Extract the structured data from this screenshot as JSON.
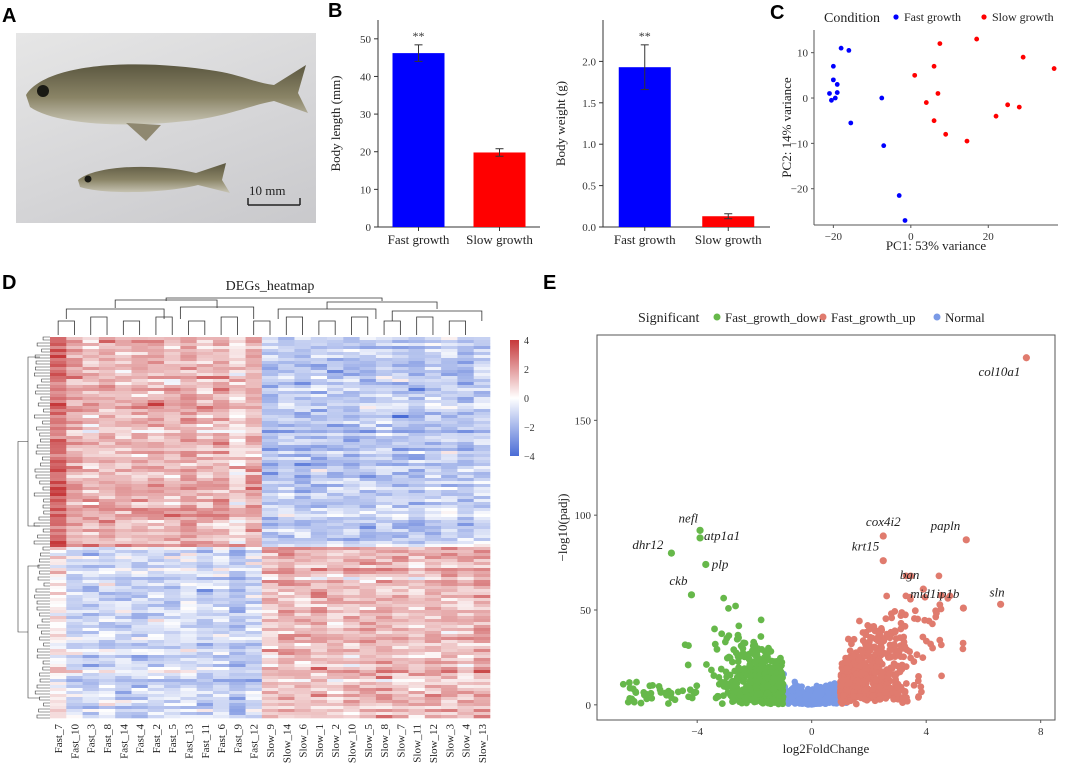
{
  "panels": {
    "a": "A",
    "b": "B",
    "c": "C",
    "d": "D",
    "e": "E"
  },
  "photo": {
    "scale_label": "10 mm"
  },
  "colors": {
    "blue": "#0000ff",
    "red": "#ff0000",
    "heat_high": "#c6393b",
    "heat_low": "#4a6cd6",
    "fast_down": "#66b84a",
    "fast_up": "#e07b6e",
    "normal": "#7a9ae6"
  },
  "chart_data": [
    {
      "type": "bar",
      "categories": [
        "Fast growth",
        "Slow growth"
      ],
      "values": [
        46.2,
        19.8
      ],
      "errors": [
        2.2,
        1.0
      ],
      "annotations": [
        "**",
        ""
      ],
      "ylabel": "Body length (mm)",
      "ylim": [
        0,
        55
      ],
      "yticks": [
        0,
        10,
        20,
        30,
        40,
        50
      ]
    },
    {
      "type": "bar",
      "categories": [
        "Fast growth",
        "Slow growth"
      ],
      "values": [
        1.93,
        0.13
      ],
      "errors": [
        0.27,
        0.03
      ],
      "annotations": [
        "**",
        ""
      ],
      "ylabel": "Body weight (g)",
      "ylim": [
        0,
        2.5
      ],
      "yticks": [
        "0.0",
        "0.5",
        "1.0",
        "1.5",
        "2.0"
      ]
    },
    {
      "type": "scatter",
      "legend_title": "Condition",
      "xlabel": "PC1: 53% variance",
      "ylabel": "PC2: 14% variance",
      "xlim": [
        -25,
        38
      ],
      "ylim": [
        -28,
        15
      ],
      "xticks": [
        -20,
        0,
        20
      ],
      "yticks": [
        -20,
        -10,
        0,
        10
      ],
      "series": [
        {
          "name": "Fast growth",
          "color": "#0000ff",
          "points": [
            [
              -20,
              7
            ],
            [
              -18,
              11
            ],
            [
              -16,
              10.5
            ],
            [
              -20,
              4
            ],
            [
              -19,
              3
            ],
            [
              -21,
              1
            ],
            [
              -19.5,
              0
            ],
            [
              -19,
              1.2
            ],
            [
              -20.5,
              -0.5
            ],
            [
              -15.5,
              -5.5
            ],
            [
              -7.5,
              0
            ],
            [
              -7,
              -10.5
            ],
            [
              -3,
              -21.5
            ],
            [
              -1.5,
              -27
            ]
          ]
        },
        {
          "name": "Slow growth",
          "color": "#ff0000",
          "points": [
            [
              1,
              5
            ],
            [
              6,
              7
            ],
            [
              7.5,
              12
            ],
            [
              4,
              -1
            ],
            [
              7,
              1
            ],
            [
              6,
              -5
            ],
            [
              9,
              -8
            ],
            [
              17,
              13
            ],
            [
              14.5,
              -9.5
            ],
            [
              22,
              -4
            ],
            [
              25,
              -1.5
            ],
            [
              28,
              -2
            ],
            [
              29,
              9
            ],
            [
              37,
              6.5
            ]
          ]
        }
      ]
    },
    {
      "type": "heatmap",
      "title": "DEGs_heatmap",
      "colorbar_ticks": [
        "4",
        "2",
        "0",
        "−2",
        "−4"
      ],
      "columns": [
        "Fast_7",
        "Fast_10",
        "Fast_3",
        "Fast_8",
        "Fast_14",
        "Fast_4",
        "Fast_2",
        "Fast_5",
        "Fast_13",
        "Fast_11",
        "Fast_6",
        "Fast_9",
        "Fast_12",
        "Slow_9",
        "Slow_14",
        "Slow_6",
        "Slow_1",
        "Slow_2",
        "Slow_10",
        "Slow_5",
        "Slow_8",
        "Slow_7",
        "Slow_11",
        "Slow_12",
        "Slow_3",
        "Slow_4",
        "Slow_13"
      ],
      "blocks": [
        {
          "rows": "upper",
          "fast": 1.6,
          "slow": -1.3
        },
        {
          "rows": "lower",
          "fast": -0.9,
          "slow": 1.4
        }
      ]
    },
    {
      "type": "scatter",
      "legend_title": "Significant",
      "legend": [
        "Fast_growth_down",
        "Fast_growth_up",
        "Normal"
      ],
      "xlabel": "log2FoldChange",
      "ylabel": "−log10(padj)",
      "xlim": [
        -7.5,
        8.5
      ],
      "ylim": [
        -8,
        195
      ],
      "xticks": [
        -4,
        0,
        4,
        8
      ],
      "yticks": [
        0,
        50,
        100,
        150
      ],
      "labels": [
        {
          "text": "col10a1",
          "x": 7.5,
          "y": 183,
          "group": "Fast_growth_up"
        },
        {
          "text": "nefl",
          "x": -3.9,
          "y": 92,
          "group": "Fast_growth_down"
        },
        {
          "text": "atp1a1",
          "x": -3.9,
          "y": 88,
          "group": "Fast_growth_down"
        },
        {
          "text": "dhr12",
          "x": -4.9,
          "y": 80,
          "group": "Fast_growth_down"
        },
        {
          "text": "plp",
          "x": -3.7,
          "y": 74,
          "group": "Fast_growth_down"
        },
        {
          "text": "ckb",
          "x": -4.2,
          "y": 58,
          "group": "Fast_growth_down"
        },
        {
          "text": "cox4i2",
          "x": 2.5,
          "y": 89,
          "group": "Fast_growth_up"
        },
        {
          "text": "krt15",
          "x": 2.5,
          "y": 76,
          "group": "Fast_growth_up"
        },
        {
          "text": "papln",
          "x": 5.4,
          "y": 87,
          "group": "Fast_growth_up"
        },
        {
          "text": "bgn",
          "x": 3.9,
          "y": 61,
          "group": "Fast_growth_up"
        },
        {
          "text": "mid1ip1b",
          "x": 5.3,
          "y": 51,
          "group": "Fast_growth_up"
        },
        {
          "text": "sln",
          "x": 6.6,
          "y": 53,
          "group": "Fast_growth_up"
        }
      ]
    }
  ]
}
